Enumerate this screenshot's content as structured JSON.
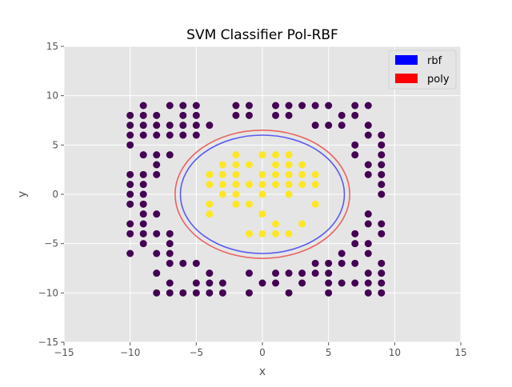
{
  "chart_data": {
    "type": "scatter",
    "title": "SVM Classifier Pol-RBF",
    "xlabel": "x",
    "ylabel": "y",
    "xlim": [
      -15,
      15
    ],
    "ylim": [
      -15,
      15
    ],
    "xticks": [
      -15,
      -10,
      -5,
      0,
      5,
      10,
      15
    ],
    "yticks": [
      -15,
      -10,
      -5,
      0,
      5,
      10,
      15
    ],
    "xtick_labels": [
      "−15",
      "−10",
      "−5",
      "0",
      "5",
      "10",
      "15"
    ],
    "ytick_labels": [
      "−15",
      "−10",
      "−5",
      "0",
      "5",
      "10",
      "15"
    ],
    "grid": true,
    "legend_position": "top-right",
    "legend": [
      {
        "label": "rbf",
        "color": "#0000ff"
      },
      {
        "label": "poly",
        "color": "#ff0000"
      }
    ],
    "boundaries": [
      {
        "name": "rbf",
        "color": "#5b5bf0",
        "center": [
          0,
          0
        ],
        "rx": 6.2,
        "ry": 6.0
      },
      {
        "name": "poly",
        "color": "#e8645f",
        "center": [
          0,
          0
        ],
        "rx": 6.6,
        "ry": 6.5
      }
    ],
    "classes": {
      "outer": {
        "color": "#440154"
      },
      "inner": {
        "color": "#fde725"
      }
    },
    "points_outer": [
      [
        -10,
        8
      ],
      [
        -10,
        7
      ],
      [
        -10,
        6
      ],
      [
        -10,
        5
      ],
      [
        -9,
        9
      ],
      [
        -9,
        8
      ],
      [
        -9,
        7
      ],
      [
        -9,
        6
      ],
      [
        -8,
        8
      ],
      [
        -8,
        7
      ],
      [
        -8,
        6
      ],
      [
        -7,
        9
      ],
      [
        -7,
        7
      ],
      [
        -7,
        6
      ],
      [
        -6,
        9
      ],
      [
        -6,
        8
      ],
      [
        -6,
        7
      ],
      [
        -6,
        6
      ],
      [
        -5,
        9
      ],
      [
        -5,
        8
      ],
      [
        -5,
        7
      ],
      [
        -5,
        6
      ],
      [
        -4,
        7
      ],
      [
        -2,
        9
      ],
      [
        -2,
        8
      ],
      [
        -1,
        9
      ],
      [
        -1,
        8
      ],
      [
        1,
        9
      ],
      [
        1,
        8
      ],
      [
        2,
        9
      ],
      [
        2,
        8
      ],
      [
        3,
        9
      ],
      [
        4,
        9
      ],
      [
        4,
        7
      ],
      [
        5,
        9
      ],
      [
        5,
        7
      ],
      [
        6,
        8
      ],
      [
        6,
        7
      ],
      [
        7,
        9
      ],
      [
        7,
        8
      ],
      [
        8,
        9
      ],
      [
        8,
        7
      ],
      [
        8,
        6
      ],
      [
        7,
        5
      ],
      [
        7,
        4
      ],
      [
        9,
        6
      ],
      [
        9,
        5
      ],
      [
        9,
        4
      ],
      [
        8,
        3
      ],
      [
        9,
        3
      ],
      [
        8,
        2
      ],
      [
        9,
        2
      ],
      [
        9,
        1
      ],
      [
        9,
        0
      ],
      [
        8,
        -2
      ],
      [
        8,
        -3
      ],
      [
        9,
        -3
      ],
      [
        9,
        -4
      ],
      [
        7,
        -4
      ],
      [
        7,
        -5
      ],
      [
        8,
        -5
      ],
      [
        6,
        -6
      ],
      [
        8,
        -6
      ],
      [
        7,
        -7
      ],
      [
        6,
        -7
      ],
      [
        9,
        -7
      ],
      [
        8,
        -8
      ],
      [
        9,
        -8
      ],
      [
        7,
        -9
      ],
      [
        8,
        -9
      ],
      [
        9,
        -9
      ],
      [
        8,
        -10
      ],
      [
        9,
        -10
      ],
      [
        5,
        -10
      ],
      [
        6,
        -9
      ],
      [
        5,
        -9
      ],
      [
        4,
        -8
      ],
      [
        5,
        -8
      ],
      [
        4,
        -7
      ],
      [
        5,
        -7
      ],
      [
        -10,
        2
      ],
      [
        -10,
        1
      ],
      [
        -10,
        0
      ],
      [
        -10,
        -1
      ],
      [
        -10,
        -3
      ],
      [
        -10,
        -4
      ],
      [
        -10,
        -6
      ],
      [
        -9,
        2
      ],
      [
        -9,
        1
      ],
      [
        -9,
        0
      ],
      [
        -9,
        -1
      ],
      [
        -9,
        -2
      ],
      [
        -9,
        -3
      ],
      [
        -9,
        -4
      ],
      [
        -9,
        -5
      ],
      [
        -9,
        4
      ],
      [
        -8,
        4
      ],
      [
        -8,
        3
      ],
      [
        -8,
        2
      ],
      [
        -8,
        -2
      ],
      [
        -8,
        -4
      ],
      [
        -8,
        -6
      ],
      [
        -8,
        -8
      ],
      [
        -8,
        -10
      ],
      [
        -7,
        4
      ],
      [
        -7,
        -4
      ],
      [
        -7,
        -5
      ],
      [
        -7,
        -6
      ],
      [
        -7,
        -7
      ],
      [
        -7,
        -9
      ],
      [
        -7,
        -10
      ],
      [
        -6,
        -7
      ],
      [
        -6,
        -10
      ],
      [
        -5,
        -7
      ],
      [
        -5,
        -9
      ],
      [
        -5,
        -10
      ],
      [
        -4,
        -8
      ],
      [
        -4,
        -9
      ],
      [
        -4,
        -10
      ],
      [
        -3,
        -9
      ],
      [
        -3,
        -10
      ],
      [
        -1,
        -8
      ],
      [
        -1,
        -10
      ],
      [
        0,
        -9
      ],
      [
        1,
        -8
      ],
      [
        1,
        -9
      ],
      [
        2,
        -8
      ],
      [
        2,
        -10
      ],
      [
        3,
        -8
      ],
      [
        3,
        -9
      ]
    ],
    "points_inner": [
      [
        -2,
        4
      ],
      [
        0,
        4
      ],
      [
        1,
        4
      ],
      [
        2,
        4
      ],
      [
        -3,
        3
      ],
      [
        -2,
        3
      ],
      [
        -1,
        3
      ],
      [
        1,
        3
      ],
      [
        2,
        3
      ],
      [
        3,
        3
      ],
      [
        -4,
        2
      ],
      [
        -3,
        2
      ],
      [
        -2,
        2
      ],
      [
        0,
        2
      ],
      [
        1,
        2
      ],
      [
        2,
        2
      ],
      [
        3,
        2
      ],
      [
        4,
        2
      ],
      [
        -4,
        1
      ],
      [
        -3,
        1
      ],
      [
        -2,
        1
      ],
      [
        -1,
        1
      ],
      [
        0,
        1
      ],
      [
        1,
        1
      ],
      [
        2,
        1
      ],
      [
        3,
        1
      ],
      [
        4,
        1
      ],
      [
        -3,
        0
      ],
      [
        -2,
        0
      ],
      [
        0,
        0
      ],
      [
        2,
        0
      ],
      [
        -4,
        -1
      ],
      [
        -2,
        -1
      ],
      [
        -1,
        -1
      ],
      [
        4,
        -1
      ],
      [
        -4,
        -2
      ],
      [
        0,
        -2
      ],
      [
        1,
        -3
      ],
      [
        3,
        -3
      ],
      [
        -1,
        -4
      ],
      [
        0,
        -4
      ],
      [
        1,
        -4
      ],
      [
        2,
        -4
      ]
    ]
  }
}
